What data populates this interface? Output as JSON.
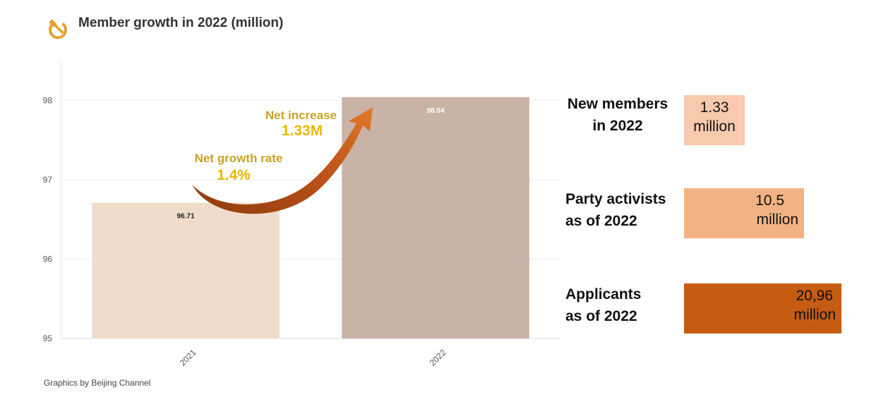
{
  "header": {
    "title": "Member growth in 2022 (million)",
    "logo_icon": "hammer-sickle-icon"
  },
  "chart_data": {
    "type": "bar",
    "categories": [
      "2021",
      "2022"
    ],
    "values": [
      96.71,
      98.04
    ],
    "data_labels": [
      "96.71",
      "98.04"
    ],
    "colors": [
      "#efdccb",
      "#c9b2a6"
    ],
    "ylim": [
      95,
      98.5
    ],
    "yticks": [
      95,
      96,
      97,
      98
    ],
    "grid": true,
    "annotations": [
      {
        "label": "Net increase",
        "value": "1.33M"
      },
      {
        "label": "Net growth rate",
        "value": "1.4%"
      }
    ],
    "arrow_color": "#c0561a"
  },
  "stats": [
    {
      "label_line1": "New members",
      "label_line2": "in 2022",
      "value_line1": "1.33",
      "value_line2": "million",
      "color": "#f7c9ad"
    },
    {
      "label_line1": "Party activists",
      "label_line2": "as of 2022",
      "value_line1": "10.5",
      "value_line2": "million",
      "color": "#f2b283"
    },
    {
      "label_line1": "Applicants",
      "label_line2": "as of 2022",
      "value_line1": "20,96",
      "value_line2": "million",
      "color": "#c65c12"
    }
  ],
  "footer": {
    "credit": "Graphics by Beijing Channel"
  }
}
